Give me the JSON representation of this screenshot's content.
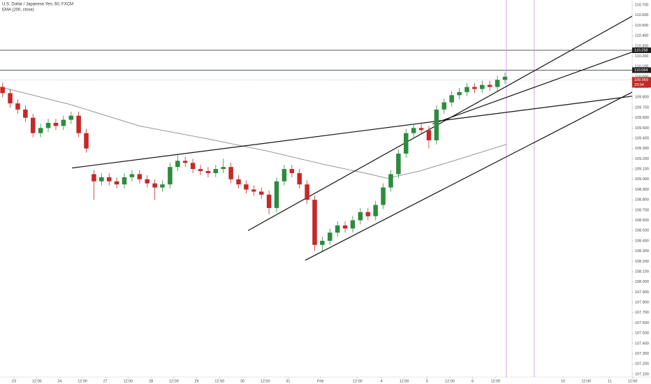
{
  "chart_data": {
    "type": "candlestick",
    "title": "U.S. Dollar / Japanese Yen, 60, FXCM",
    "up_color": "#2e8b3e",
    "down_color": "#c62828",
    "xlim": [
      -7.34,
      324.8
    ],
    "ylim": [
      107.072,
      110.748
    ],
    "xticks": [
      {
        "value": 0,
        "label": "23"
      },
      {
        "value": 12,
        "label": "12:00"
      },
      {
        "value": 24,
        "label": "24"
      },
      {
        "value": 36,
        "label": "12:00"
      },
      {
        "value": 48,
        "label": "27"
      },
      {
        "value": 60,
        "label": "12:00"
      },
      {
        "value": 72,
        "label": "28"
      },
      {
        "value": 84,
        "label": "12:00"
      },
      {
        "value": 96,
        "label": "29"
      },
      {
        "value": 108,
        "label": "12:00"
      },
      {
        "value": 120,
        "label": "30"
      },
      {
        "value": 132,
        "label": "12:00"
      },
      {
        "value": 144,
        "label": "31"
      },
      {
        "value": 161,
        "label": "Feb"
      },
      {
        "value": 180.5,
        "label": "12:00"
      },
      {
        "value": 193,
        "label": "4"
      },
      {
        "value": 205,
        "label": "12:00"
      },
      {
        "value": 217,
        "label": "5"
      },
      {
        "value": 229,
        "label": "12:00"
      },
      {
        "value": 241,
        "label": "6"
      },
      {
        "value": 253,
        "label": "12:00"
      },
      {
        "value": 288.5,
        "label": "10"
      },
      {
        "value": 300.7,
        "label": "12:00"
      },
      {
        "value": 313,
        "label": "11"
      },
      {
        "value": 325,
        "label": "12:00"
      }
    ],
    "yticks": [
      {
        "value": 110.7,
        "label": "110.700"
      },
      {
        "value": 110.6,
        "label": "110.600"
      },
      {
        "value": 110.5,
        "label": "110.500"
      },
      {
        "value": 110.4,
        "label": "110.400"
      },
      {
        "value": 110.3,
        "label": "110.300"
      },
      {
        "value": 110.2,
        "label": "110.200"
      },
      {
        "value": 110.1,
        "label": "110.100"
      },
      {
        "value": 110.0,
        "label": "110.000"
      },
      {
        "value": 109.9,
        "label": "109.900"
      },
      {
        "value": 109.8,
        "label": "109.800"
      },
      {
        "value": 109.7,
        "label": "109.700"
      },
      {
        "value": 109.6,
        "label": "109.600"
      },
      {
        "value": 109.5,
        "label": "109.500"
      },
      {
        "value": 109.4,
        "label": "109.400"
      },
      {
        "value": 109.3,
        "label": "109.300"
      },
      {
        "value": 109.2,
        "label": "109.200"
      },
      {
        "value": 109.1,
        "label": "109.100"
      },
      {
        "value": 109.0,
        "label": "109.000"
      },
      {
        "value": 108.9,
        "label": "108.900"
      },
      {
        "value": 108.8,
        "label": "108.800"
      },
      {
        "value": 108.7,
        "label": "108.700"
      },
      {
        "value": 108.6,
        "label": "108.600"
      },
      {
        "value": 108.5,
        "label": "108.500"
      },
      {
        "value": 108.4,
        "label": "108.400"
      },
      {
        "value": 108.3,
        "label": "108.300"
      },
      {
        "value": 108.2,
        "label": "108.200"
      },
      {
        "value": 108.1,
        "label": "108.100"
      },
      {
        "value": 108.0,
        "label": "108.000"
      },
      {
        "value": 107.9,
        "label": "107.900"
      },
      {
        "value": 107.8,
        "label": "107.800"
      },
      {
        "value": 107.7,
        "label": "107.700"
      },
      {
        "value": 107.6,
        "label": "107.600"
      },
      {
        "value": 107.5,
        "label": "107.500"
      },
      {
        "value": 107.4,
        "label": "107.400"
      },
      {
        "value": 107.3,
        "label": "107.300"
      },
      {
        "value": 107.2,
        "label": "107.200"
      },
      {
        "value": 107.1,
        "label": "107.100"
      }
    ],
    "x": [
      -6,
      -2,
      2,
      6,
      10,
      14,
      18,
      22,
      26,
      30,
      34,
      38,
      42,
      46,
      50,
      54,
      58,
      62,
      66,
      70,
      74,
      78,
      82,
      86,
      90,
      94,
      98,
      102,
      106,
      110,
      114,
      118,
      122,
      126,
      130,
      134,
      138,
      142,
      146,
      150,
      154,
      158,
      162,
      166,
      170,
      174,
      178,
      182,
      186,
      190,
      194,
      198,
      202,
      206,
      210,
      214,
      218,
      222,
      226,
      230,
      234,
      238,
      242,
      246,
      250,
      254,
      258
    ],
    "open": [
      109.9,
      109.84,
      109.74,
      109.68,
      109.6,
      109.45,
      109.5,
      109.55,
      109.52,
      109.58,
      109.62,
      109.45,
      109.05,
      108.98,
      109.02,
      108.98,
      108.95,
      109.02,
      109.05,
      109.0,
      108.96,
      108.92,
      108.95,
      109.12,
      109.18,
      109.16,
      109.1,
      109.08,
      109.06,
      109.1,
      109.12,
      109.0,
      108.95,
      108.9,
      108.88,
      108.85,
      108.72,
      108.98,
      109.1,
      109.06,
      108.95,
      108.8,
      108.36,
      108.4,
      108.48,
      108.55,
      108.52,
      108.6,
      108.68,
      108.64,
      108.75,
      108.92,
      109.05,
      109.25,
      109.45,
      109.5,
      109.48,
      109.38,
      109.68,
      109.75,
      109.82,
      109.85,
      109.9,
      109.88,
      109.92,
      109.9,
      109.97
    ],
    "high": [
      109.94,
      109.88,
      109.78,
      109.72,
      109.64,
      109.54,
      109.59,
      109.59,
      109.62,
      109.66,
      109.66,
      109.49,
      109.09,
      109.06,
      109.06,
      109.02,
      109.06,
      109.09,
      109.09,
      109.04,
      109.0,
      108.99,
      109.16,
      109.25,
      109.22,
      109.2,
      109.14,
      109.12,
      109.14,
      109.2,
      109.16,
      109.04,
      108.99,
      108.94,
      108.92,
      108.89,
      109.02,
      109.14,
      109.14,
      109.1,
      108.99,
      108.84,
      108.44,
      108.52,
      108.59,
      108.59,
      108.64,
      108.72,
      108.72,
      108.79,
      108.96,
      109.09,
      109.29,
      109.49,
      109.54,
      109.54,
      109.52,
      109.72,
      109.79,
      109.86,
      109.89,
      109.94,
      109.94,
      109.96,
      109.96,
      110.01,
      110.04
    ],
    "low": [
      109.8,
      109.7,
      109.64,
      109.56,
      109.41,
      109.41,
      109.46,
      109.48,
      109.48,
      109.54,
      109.41,
      109.26,
      108.8,
      108.94,
      108.94,
      108.91,
      108.91,
      108.98,
      108.96,
      108.92,
      108.8,
      108.88,
      108.91,
      109.08,
      109.12,
      109.06,
      109.04,
      109.02,
      109.02,
      109.06,
      108.96,
      108.91,
      108.86,
      108.84,
      108.81,
      108.66,
      108.68,
      108.94,
      109.02,
      108.91,
      108.76,
      108.3,
      108.3,
      108.36,
      108.44,
      108.48,
      108.48,
      108.56,
      108.6,
      108.6,
      108.71,
      108.88,
      109.01,
      109.21,
      109.41,
      109.44,
      109.3,
      109.34,
      109.64,
      109.71,
      109.78,
      109.81,
      109.84,
      109.84,
      109.86,
      109.86,
      109.93
    ],
    "close": [
      109.84,
      109.74,
      109.68,
      109.6,
      109.45,
      109.5,
      109.55,
      109.52,
      109.58,
      109.62,
      109.45,
      109.3,
      108.98,
      109.02,
      108.98,
      108.95,
      109.02,
      109.05,
      109.0,
      108.96,
      108.92,
      108.95,
      109.12,
      109.18,
      109.16,
      109.1,
      109.08,
      109.06,
      109.1,
      109.12,
      109.0,
      108.95,
      108.9,
      108.88,
      108.85,
      108.72,
      108.98,
      109.1,
      109.06,
      108.95,
      108.8,
      108.36,
      108.4,
      108.48,
      108.55,
      108.52,
      108.6,
      108.68,
      108.64,
      108.75,
      108.92,
      109.05,
      109.25,
      109.45,
      109.5,
      109.48,
      109.38,
      109.68,
      109.75,
      109.82,
      109.85,
      109.9,
      109.88,
      109.92,
      109.9,
      109.97,
      110.0
    ],
    "ema": {
      "name": "EMA (200, close)",
      "color": "#8a8a8a",
      "x": [
        -7.3,
        29.4,
        66,
        102.8,
        132,
        161.5,
        187,
        196,
        213,
        231,
        258.7
      ],
      "values": [
        109.9,
        109.73,
        109.52,
        109.39,
        109.28,
        109.15,
        109.05,
        109.01,
        109.08,
        109.18,
        109.34
      ]
    },
    "trend_lines": [
      {
        "x": [
          30.5,
          324.8
        ],
        "values": [
          109.11,
          109.81
        ]
      },
      {
        "x": [
          123,
          324.8
        ],
        "values": [
          108.5,
          110.59
        ]
      },
      {
        "x": [
          153,
          324.8
        ],
        "values": [
          108.21,
          109.85
        ]
      },
      {
        "x": [
          220,
          324.8
        ],
        "values": [
          109.54,
          110.24
        ]
      }
    ],
    "horizontal_lines": [
      110.258,
      110.064
    ],
    "vertical_lines": [
      258.7,
      273.4
    ],
    "last_price": 109.969,
    "countdown": "23:04"
  }
}
